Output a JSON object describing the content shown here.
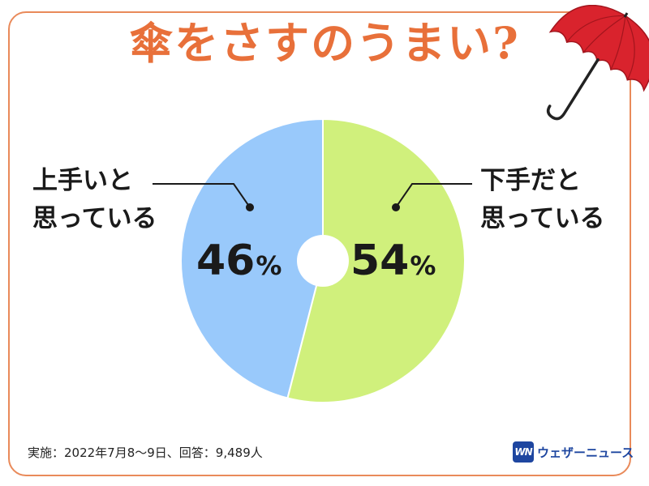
{
  "title": "傘をさすのうまい?",
  "colors": {
    "frame": "#e98a5a",
    "title": "#e8703a",
    "slice_good": "#99c9fb",
    "slice_bad": "#d0f07c",
    "text": "#1a1a1a",
    "brand": "#1e46a0",
    "umbrella": "#d9232d"
  },
  "chart_data": {
    "type": "pie",
    "title": "傘をさすのうまい?",
    "slices": [
      {
        "label_lines": [
          "上手いと",
          "思っている"
        ],
        "value": 46,
        "display": "46",
        "unit": "%"
      },
      {
        "label_lines": [
          "下手だと",
          "思っている"
        ],
        "value": 54,
        "display": "54",
        "unit": "%"
      }
    ],
    "donut_hole": true
  },
  "footer": {
    "note": "実施：2022年7月8〜9日、回答：9,489人"
  },
  "brand": {
    "logo_text": "WN",
    "name": "ウェザーニュース"
  },
  "icons": {
    "decoration": "umbrella-icon"
  }
}
